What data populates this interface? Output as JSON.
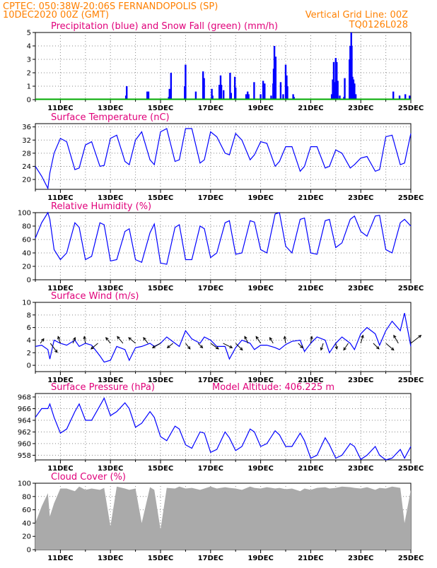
{
  "header": {
    "line1": "CPTEC:  050:38W-20:06S  FERNANDOPOLIS (SP)",
    "line2_left": "10DEC2020 00Z (GMT)",
    "line2_right": "Vertical Grid Line: 00Z",
    "code": "TQ0126L028"
  },
  "colors": {
    "header": "#ff8000",
    "panel_title": "#e0007a",
    "series": "#0000ff",
    "snow": "#00aa00",
    "cloud": "#aaaaaa",
    "vector": "#000000"
  },
  "x_tick_labels": [
    "11DEC",
    "13DEC",
    "15DEC",
    "17DEC",
    "19DEC",
    "21DEC",
    "23DEC",
    "25DEC"
  ],
  "chart_data": [
    {
      "type": "bar",
      "title": "Precipitation (blue) and Snow Fall (green) (mm/h)",
      "ylim": [
        0,
        5
      ],
      "yticks": [
        "0",
        "1",
        "2",
        "3",
        "4",
        "5"
      ],
      "x_day_range": [
        10,
        25
      ],
      "series": [
        {
          "name": "Precipitation",
          "x_day": [
            13.62,
            13.65,
            14.47,
            14.52,
            15.33,
            15.36,
            15.42,
            15.97,
            16.0,
            16.41,
            16.7,
            16.74,
            17.05,
            17.08,
            17.35,
            17.4,
            17.43,
            17.52,
            17.78,
            17.82,
            17.97,
            18.0,
            18.42,
            18.48,
            18.52,
            18.74,
            19.0,
            19.1,
            19.16,
            19.42,
            19.5,
            19.52,
            19.55,
            19.6,
            19.8,
            19.9,
            20.0,
            20.04,
            20.07,
            20.3,
            20.33,
            21.84,
            21.88,
            21.92,
            21.97,
            22.0,
            22.04,
            22.08,
            22.16,
            22.33,
            22.36,
            22.55,
            22.58,
            22.62,
            22.64,
            22.67,
            22.71,
            22.75,
            22.8,
            24.3,
            24.55,
            24.78,
            24.95
          ],
          "values": [
            0.3,
            1.0,
            0.6,
            0.6,
            0.2,
            0.8,
            2.0,
            1.0,
            2.6,
            0.6,
            2.1,
            1.6,
            0.8,
            0.3,
            1.1,
            1.8,
            1.1,
            0.7,
            2.0,
            0.5,
            1.7,
            0.9,
            0.4,
            0.6,
            0.4,
            1.3,
            0.4,
            1.4,
            1.2,
            0.3,
            1.2,
            2.3,
            4.0,
            3.2,
            1.3,
            0.4,
            2.6,
            1.8,
            1.0,
            0.4,
            0.2,
            0.4,
            1.5,
            2.8,
            1.3,
            3.1,
            2.8,
            1.4,
            0.3,
            0.2,
            1.6,
            3.0,
            4.0,
            5.0,
            4.0,
            1.7,
            1.5,
            1.2,
            0.4,
            0.6,
            0.3,
            0.4,
            0.3
          ]
        },
        {
          "name": "Snow Fall",
          "x_day": [
            10,
            25
          ],
          "values": [
            0,
            0
          ]
        }
      ]
    },
    {
      "type": "line",
      "title": "Surface Temperature (nC)",
      "ylim": [
        17,
        37
      ],
      "yticks": [
        "20",
        "24",
        "28",
        "32",
        "36"
      ],
      "x_day": [
        10.0,
        10.25,
        10.5,
        10.58,
        10.75,
        11.0,
        11.25,
        11.58,
        11.75,
        12.0,
        12.25,
        12.58,
        12.75,
        13.0,
        13.25,
        13.58,
        13.75,
        14.0,
        14.25,
        14.58,
        14.75,
        15.0,
        15.25,
        15.58,
        15.75,
        16.0,
        16.25,
        16.58,
        16.75,
        17.0,
        17.25,
        17.58,
        17.75,
        18.0,
        18.25,
        18.58,
        18.75,
        19.0,
        19.25,
        19.58,
        19.75,
        20.0,
        20.25,
        20.58,
        20.75,
        21.0,
        21.25,
        21.58,
        21.75,
        22.0,
        22.25,
        22.58,
        22.75,
        23.0,
        23.25,
        23.58,
        23.75,
        24.0,
        24.25,
        24.58,
        24.75,
        25.0
      ],
      "series": [
        {
          "name": "",
          "values": [
            24.0,
            21.0,
            17.3,
            22.0,
            28.0,
            32.5,
            31.5,
            23.0,
            23.5,
            30.5,
            31.5,
            24.0,
            24.3,
            32.5,
            33.5,
            25.5,
            24.5,
            32.0,
            34.5,
            26.0,
            24.5,
            34.5,
            35.5,
            25.5,
            26.0,
            35.5,
            35.5,
            25.0,
            26.0,
            34.5,
            33.0,
            28.0,
            27.5,
            34.0,
            32.0,
            26.0,
            27.5,
            31.5,
            31.0,
            24.0,
            25.5,
            30.0,
            30.0,
            22.5,
            24.0,
            30.0,
            30.0,
            23.5,
            24.0,
            29.0,
            28.0,
            23.5,
            24.5,
            26.5,
            27.0,
            22.5,
            23.0,
            33.0,
            33.5,
            24.5,
            25.0,
            34.0
          ]
        }
      ]
    },
    {
      "type": "line",
      "title": "Relative Humidity (%)",
      "ylim": [
        0,
        100
      ],
      "yticks": [
        "0",
        "20",
        "40",
        "60",
        "80",
        "100"
      ],
      "x_day": [
        10.0,
        10.25,
        10.5,
        10.58,
        10.75,
        11.0,
        11.25,
        11.58,
        11.75,
        12.0,
        12.25,
        12.58,
        12.75,
        13.0,
        13.25,
        13.58,
        13.75,
        14.0,
        14.25,
        14.58,
        14.75,
        15.0,
        15.25,
        15.58,
        15.75,
        16.0,
        16.25,
        16.58,
        16.75,
        17.0,
        17.25,
        17.58,
        17.75,
        18.0,
        18.25,
        18.58,
        18.75,
        19.0,
        19.25,
        19.58,
        19.75,
        20.0,
        20.25,
        20.58,
        20.75,
        21.0,
        21.25,
        21.58,
        21.75,
        22.0,
        22.25,
        22.58,
        22.75,
        23.0,
        23.25,
        23.58,
        23.75,
        24.0,
        24.25,
        24.58,
        24.75,
        25.0
      ],
      "series": [
        {
          "name": "",
          "values": [
            62.0,
            85.0,
            100.0,
            90.0,
            45.0,
            30.0,
            40.0,
            85.0,
            78.0,
            30.0,
            35.0,
            85.0,
            82.0,
            28.0,
            30.0,
            72.0,
            76.0,
            30.0,
            26.0,
            70.0,
            83.0,
            25.0,
            23.0,
            78.0,
            82.0,
            30.0,
            30.0,
            80.0,
            76.0,
            33.0,
            40.0,
            85.0,
            88.0,
            38.0,
            40.0,
            88.0,
            86.0,
            45.0,
            40.0,
            98.0,
            100.0,
            50.0,
            40.0,
            90.0,
            92.0,
            40.0,
            38.0,
            88.0,
            90.0,
            48.0,
            55.0,
            90.0,
            95.0,
            72.0,
            65.0,
            95.0,
            96.0,
            45.0,
            40.0,
            85.0,
            90.0,
            80.0
          ]
        }
      ]
    },
    {
      "type": "line",
      "title": "Surface Wind (m/s)",
      "ylim": [
        -1,
        10
      ],
      "yticks": [
        "0",
        "2",
        "4",
        "6",
        "8",
        "10"
      ],
      "x_day": [
        10.0,
        10.25,
        10.5,
        10.58,
        10.75,
        11.0,
        11.25,
        11.58,
        11.75,
        12.0,
        12.25,
        12.58,
        12.75,
        13.0,
        13.25,
        13.58,
        13.75,
        14.0,
        14.25,
        14.58,
        14.75,
        15.0,
        15.25,
        15.58,
        15.75,
        16.0,
        16.25,
        16.58,
        16.75,
        17.0,
        17.25,
        17.58,
        17.75,
        18.0,
        18.25,
        18.58,
        18.75,
        19.0,
        19.25,
        19.58,
        19.75,
        20.0,
        20.25,
        20.58,
        20.75,
        21.0,
        21.25,
        21.58,
        21.75,
        22.0,
        22.25,
        22.58,
        22.75,
        23.0,
        23.25,
        23.58,
        23.75,
        24.0,
        24.25,
        24.58,
        24.75,
        25.0
      ],
      "series": [
        {
          "name": "",
          "values": [
            3.0,
            3.2,
            2.5,
            1.0,
            4.0,
            3.5,
            3.2,
            4.0,
            3.0,
            3.5,
            3.2,
            1.5,
            0.5,
            0.8,
            3.0,
            2.5,
            0.8,
            2.8,
            3.0,
            3.5,
            3.0,
            3.5,
            4.5,
            3.5,
            3.0,
            5.5,
            4.2,
            3.5,
            4.5,
            4.0,
            3.0,
            3.0,
            1.0,
            2.8,
            4.0,
            3.5,
            2.5,
            3.2,
            3.2,
            2.8,
            2.5,
            3.3,
            3.8,
            4.0,
            2.2,
            3.5,
            4.5,
            4.0,
            2.0,
            3.5,
            4.5,
            3.5,
            2.5,
            5.0,
            6.0,
            5.0,
            3.2,
            5.5,
            7.0,
            5.5,
            8.3,
            3.0
          ]
        }
      ]
    },
    {
      "type": "line",
      "title": "Surface Pressure (hPa)",
      "subtitle": "Model Altitude: 406.225 m",
      "ylim": [
        957.2,
        968.6
      ],
      "yticks": [
        "958",
        "960",
        "962",
        "964",
        "966",
        "968"
      ],
      "x_day": [
        10.0,
        10.25,
        10.5,
        10.58,
        10.75,
        11.0,
        11.25,
        11.58,
        11.75,
        12.0,
        12.25,
        12.58,
        12.75,
        13.0,
        13.25,
        13.58,
        13.75,
        14.0,
        14.25,
        14.58,
        14.75,
        15.0,
        15.25,
        15.58,
        15.75,
        16.0,
        16.25,
        16.58,
        16.75,
        17.0,
        17.25,
        17.58,
        17.75,
        18.0,
        18.25,
        18.58,
        18.75,
        19.0,
        19.25,
        19.58,
        19.75,
        20.0,
        20.25,
        20.58,
        20.75,
        21.0,
        21.25,
        21.58,
        21.75,
        22.0,
        22.25,
        22.58,
        22.75,
        23.0,
        23.25,
        23.58,
        23.75,
        24.0,
        24.25,
        24.58,
        24.75,
        25.0
      ],
      "series": [
        {
          "name": "",
          "values": [
            964.5,
            966.0,
            966.0,
            966.8,
            964.5,
            961.8,
            962.5,
            965.5,
            966.8,
            964.0,
            964.0,
            966.5,
            967.8,
            964.8,
            965.5,
            967.0,
            966.0,
            962.8,
            963.5,
            965.5,
            964.5,
            961.2,
            960.5,
            963.0,
            962.5,
            959.8,
            959.2,
            962.0,
            961.8,
            958.5,
            959.0,
            962.0,
            961.0,
            958.8,
            959.5,
            962.5,
            962.0,
            959.5,
            960.0,
            962.2,
            961.5,
            959.5,
            959.5,
            961.8,
            960.5,
            957.5,
            958.0,
            961.0,
            959.8,
            957.5,
            958.0,
            960.0,
            959.5,
            957.3,
            958.0,
            959.5,
            958.0,
            957.2,
            957.5,
            959.0,
            957.5,
            959.5
          ]
        }
      ]
    },
    {
      "type": "area",
      "title": "Cloud Cover (%)",
      "ylim": [
        0,
        100
      ],
      "yticks": [
        "0",
        "20",
        "40",
        "60",
        "80",
        "100"
      ],
      "x_day": [
        10.0,
        10.25,
        10.5,
        10.58,
        10.75,
        11.0,
        11.25,
        11.58,
        11.75,
        12.0,
        12.25,
        12.58,
        12.75,
        13.0,
        13.25,
        13.58,
        13.75,
        14.0,
        14.25,
        14.58,
        14.75,
        15.0,
        15.25,
        15.58,
        15.75,
        16.0,
        16.25,
        16.58,
        16.75,
        17.0,
        17.25,
        17.58,
        17.75,
        18.0,
        18.25,
        18.58,
        18.75,
        19.0,
        19.25,
        19.58,
        19.75,
        20.0,
        20.25,
        20.58,
        20.75,
        21.0,
        21.25,
        21.58,
        21.75,
        22.0,
        22.25,
        22.58,
        22.75,
        23.0,
        23.25,
        23.58,
        23.75,
        24.0,
        24.25,
        24.58,
        24.75,
        25.0
      ],
      "series": [
        {
          "name": "",
          "values": [
            40,
            65,
            85,
            50,
            70,
            92,
            92,
            88,
            95,
            90,
            92,
            90,
            93,
            35,
            95,
            92,
            90,
            92,
            40,
            94,
            90,
            30,
            93,
            92,
            95,
            92,
            93,
            90,
            92,
            95,
            92,
            94,
            93,
            92,
            90,
            95,
            93,
            92,
            94,
            92,
            93,
            91,
            92,
            88,
            92,
            90,
            93,
            94,
            92,
            93,
            95,
            94,
            93,
            92,
            94,
            90,
            93,
            92,
            95,
            93,
            40,
            90
          ]
        }
      ]
    }
  ],
  "wind_vectors": {
    "x_day": [
      10.2,
      10.6,
      11.0,
      11.5,
      12.0,
      12.5,
      13.0,
      13.5,
      14.0,
      14.5,
      15.0,
      15.5,
      16.0,
      16.5,
      17.0,
      17.5,
      18.0,
      18.5,
      19.0,
      19.5,
      20.0,
      20.5,
      21.0,
      21.5,
      22.0,
      22.5,
      23.0,
      23.5,
      24.0,
      24.5,
      25.0
    ],
    "u_ms": [
      1.5,
      3.0,
      -1.0,
      1.0,
      -0.5,
      -3.0,
      -2.0,
      -2.5,
      -3.0,
      -2.0,
      -3.5,
      -2.5,
      2.0,
      2.0,
      3.5,
      4.0,
      3.0,
      -1.5,
      -2.0,
      -1.5,
      -0.5,
      2.0,
      0.5,
      -1.0,
      0.5,
      -2.0,
      1.0,
      2.5,
      3.5,
      -2.0,
      4.5
    ],
    "v_ms": [
      2.0,
      -4.0,
      3.0,
      2.5,
      3.0,
      -2.5,
      2.5,
      3.0,
      2.5,
      2.5,
      -2.0,
      -2.0,
      -2.5,
      -2.0,
      -2.5,
      -2.0,
      -3.0,
      3.0,
      3.0,
      2.5,
      3.0,
      -2.0,
      3.0,
      -3.0,
      -2.5,
      -3.0,
      3.5,
      -2.5,
      -3.0,
      3.5,
      3.5
    ]
  }
}
